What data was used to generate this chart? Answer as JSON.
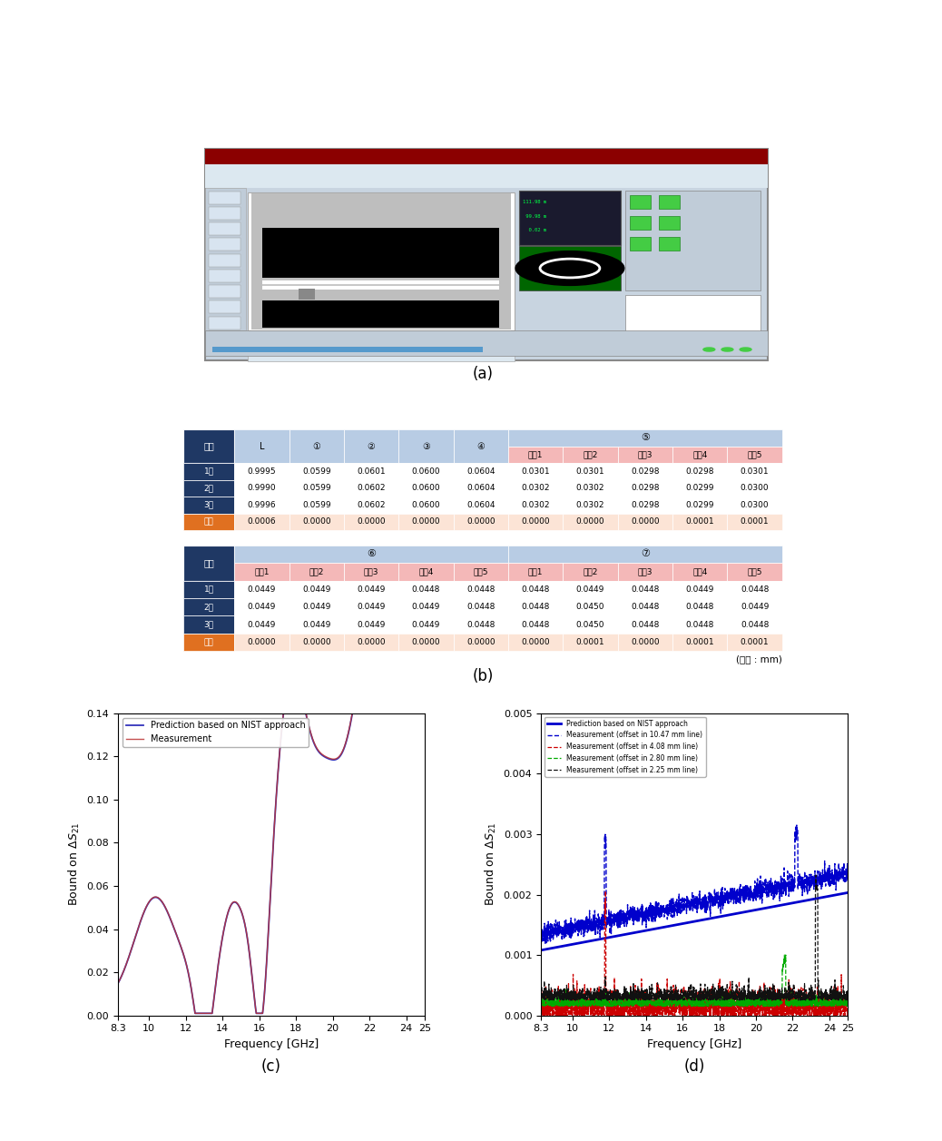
{
  "table1": {
    "rows": [
      [
        "1회",
        "0.9995",
        "0.0599",
        "0.0601",
        "0.0600",
        "0.0604",
        "0.0301",
        "0.0301",
        "0.0298",
        "0.0298",
        "0.0301"
      ],
      [
        "2회",
        "0.9990",
        "0.0599",
        "0.0602",
        "0.0600",
        "0.0604",
        "0.0302",
        "0.0302",
        "0.0298",
        "0.0299",
        "0.0300"
      ],
      [
        "3회",
        "0.9996",
        "0.0599",
        "0.0602",
        "0.0600",
        "0.0604",
        "0.0302",
        "0.0302",
        "0.0298",
        "0.0299",
        "0.0300"
      ],
      [
        "범위",
        "0.0006",
        "0.0000",
        "0.0000",
        "0.0000",
        "0.0000",
        "0.0000",
        "0.0000",
        "0.0000",
        "0.0001",
        "0.0001"
      ]
    ]
  },
  "table2": {
    "rows": [
      [
        "1회",
        "0.0449",
        "0.0449",
        "0.0449",
        "0.0448",
        "0.0448",
        "0.0448",
        "0.0449",
        "0.0448",
        "0.0449",
        "0.0448"
      ],
      [
        "2회",
        "0.0449",
        "0.0449",
        "0.0449",
        "0.0449",
        "0.0448",
        "0.0448",
        "0.0450",
        "0.0448",
        "0.0448",
        "0.0449"
      ],
      [
        "3회",
        "0.0449",
        "0.0449",
        "0.0449",
        "0.0449",
        "0.0448",
        "0.0448",
        "0.0450",
        "0.0448",
        "0.0448",
        "0.0448"
      ],
      [
        "범위",
        "0.0000",
        "0.0000",
        "0.0000",
        "0.0000",
        "0.0000",
        "0.0000",
        "0.0001",
        "0.0000",
        "0.0001",
        "0.0001"
      ]
    ]
  },
  "col_headers_t1": [
    "번호",
    "L",
    "①",
    "②",
    "③",
    "④",
    "⑤",
    "",
    "",
    "",
    ""
  ],
  "sub_headers_t1": [
    "",
    "",
    "",
    "",
    "",
    "",
    "구간1",
    "구간2",
    "구간3",
    "구간4",
    "구간5"
  ],
  "col_headers_t2_span6": "⑥",
  "col_headers_t2_span7": "⑦",
  "sub_headers_t2": [
    "",
    "구간1",
    "구간2",
    "구간3",
    "구간4",
    "구간5",
    "구간1",
    "구간2",
    "구간3",
    "구간4",
    "구간5"
  ],
  "plot_c": {
    "xlabel": "Frequency [GHz]",
    "ylabel": "Bound on $\\Delta S_{21}$",
    "xlim": [
      8.3,
      25
    ],
    "ylim": [
      0,
      0.14
    ],
    "yticks": [
      0,
      0.02,
      0.04,
      0.06,
      0.08,
      0.1,
      0.12,
      0.14
    ],
    "legend": [
      "Prediction based on NIST approach",
      "Measurement"
    ],
    "line_colors_c": [
      "#3333bb",
      "#bb3333"
    ],
    "label_c": "(c)"
  },
  "plot_d": {
    "xlabel": "Frequency [GHz]",
    "ylabel": "Bound on $\\Delta S_{21}$",
    "xlim": [
      8.3,
      25
    ],
    "ylim": [
      0,
      0.005
    ],
    "yticks": [
      0,
      0.001,
      0.002,
      0.003,
      0.004,
      0.005
    ],
    "legend": [
      "Prediction based on NIST approach",
      "Measurement (offset in 10.47 mm line)",
      "Measurement (offset in 4.08 mm line)",
      "Measurement (offset in 2.80 mm line)",
      "Measurement (offset in 2.25 mm line)"
    ],
    "line_colors_d": [
      "#0000cc",
      "#0000cc",
      "#cc0000",
      "#00aa00",
      "#111111"
    ],
    "line_styles_d": [
      "-",
      "--",
      "--",
      "--",
      "--"
    ],
    "label_d": "(d)"
  },
  "label_a": "(a)",
  "label_b": "(b)",
  "unit_text": "(단위 : mm)",
  "dark_blue": "#1f3864",
  "light_blue": "#b8cce4",
  "pink_header": "#f4b8b8",
  "pink_cell": "#fce4d6",
  "orange_header": "#e07020",
  "buno": "번호"
}
